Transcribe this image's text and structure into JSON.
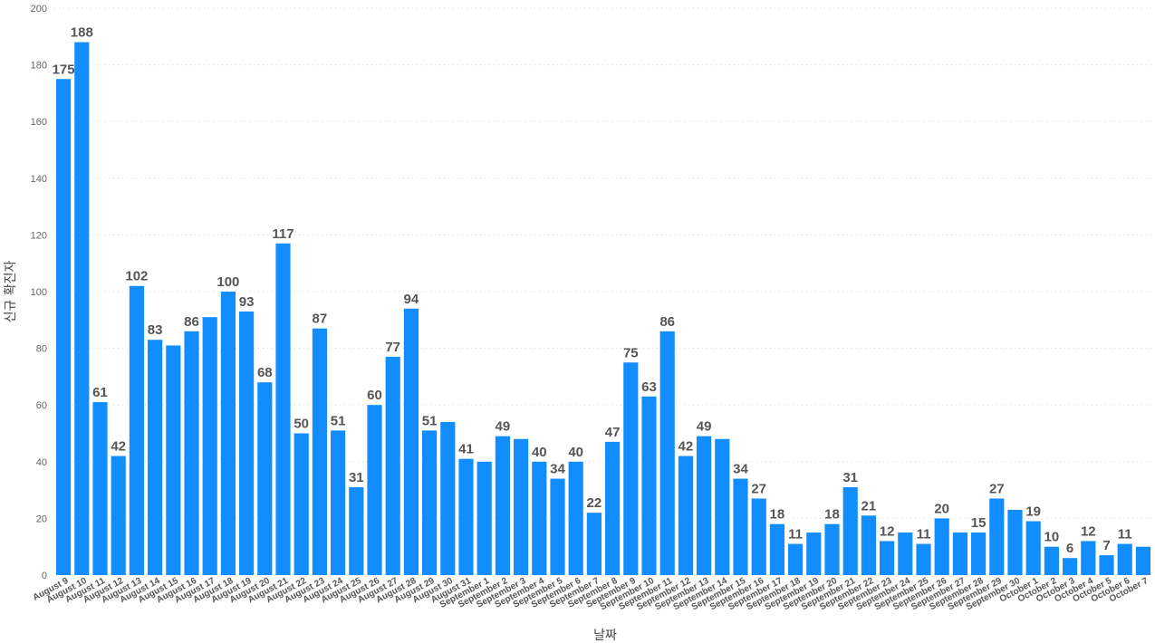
{
  "chart_data": {
    "type": "bar",
    "xlabel": "날짜",
    "ylabel": "신규 확진자",
    "ylim": [
      0,
      200
    ],
    "yticks": [
      0,
      20,
      40,
      60,
      80,
      100,
      120,
      140,
      160,
      180,
      200
    ],
    "grid": true,
    "bar_color": "#118DFF",
    "categories": [
      "August 9",
      "August 10",
      "August 11",
      "August 12",
      "August 13",
      "August 14",
      "August 15",
      "August 16",
      "August 17",
      "August 18",
      "August 19",
      "August 20",
      "August 21",
      "August 22",
      "August 23",
      "August 24",
      "August 25",
      "August 26",
      "August 27",
      "August 28",
      "August 29",
      "August 30",
      "August 31",
      "September 1",
      "September 2",
      "September 3",
      "September 4",
      "September 5",
      "September 6",
      "September 7",
      "September 8",
      "September 9",
      "September 10",
      "September 11",
      "September 12",
      "September 13",
      "September 14",
      "September 15",
      "September 16",
      "September 17",
      "September 18",
      "September 19",
      "September 20",
      "September 21",
      "September 22",
      "September 23",
      "September 24",
      "September 25",
      "September 26",
      "September 27",
      "September 28",
      "September 29",
      "September 30",
      "October 1",
      "October 2",
      "October 3",
      "October 4",
      "October 5",
      "October 6",
      "October 7"
    ],
    "values": [
      175,
      188,
      61,
      42,
      102,
      83,
      81,
      86,
      91,
      100,
      93,
      68,
      117,
      50,
      87,
      51,
      31,
      60,
      77,
      94,
      51,
      54,
      41,
      40,
      49,
      48,
      40,
      34,
      40,
      22,
      47,
      75,
      63,
      86,
      42,
      49,
      48,
      34,
      27,
      18,
      11,
      15,
      18,
      31,
      21,
      12,
      15,
      11,
      20,
      15,
      15,
      27,
      23,
      19,
      10,
      6,
      12,
      7,
      11,
      10
    ],
    "data_labels": [
      "175",
      "188",
      "61",
      "42",
      "102",
      "83",
      "",
      "86",
      "",
      "100",
      "93",
      "68",
      "117",
      "50",
      "87",
      "51",
      "31",
      "60",
      "77",
      "94",
      "51",
      "",
      "41",
      "",
      "49",
      "",
      "40",
      "34",
      "40",
      "22",
      "47",
      "75",
      "63",
      "86",
      "42",
      "49",
      "",
      "34",
      "27",
      "18",
      "11",
      "",
      "18",
      "31",
      "21",
      "12",
      "",
      "11",
      "20",
      "",
      "15",
      "27",
      "",
      "19",
      "10",
      "6",
      "12",
      "7",
      "11",
      ""
    ]
  }
}
